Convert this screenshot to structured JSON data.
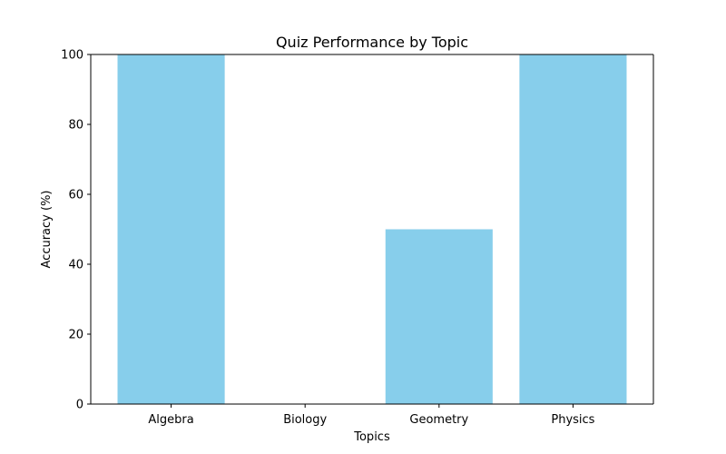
{
  "chart_data": {
    "type": "bar",
    "title": "Quiz Performance by Topic",
    "xlabel": "Topics",
    "ylabel": "Accuracy (%)",
    "categories": [
      "Algebra",
      "Biology",
      "Geometry",
      "Physics"
    ],
    "values": [
      100,
      0,
      50,
      100
    ],
    "ylim": [
      0,
      100
    ],
    "yticks": [
      0,
      20,
      40,
      60,
      80,
      100
    ],
    "bar_color": "#87CEEB",
    "grid": false,
    "legend": "none"
  }
}
